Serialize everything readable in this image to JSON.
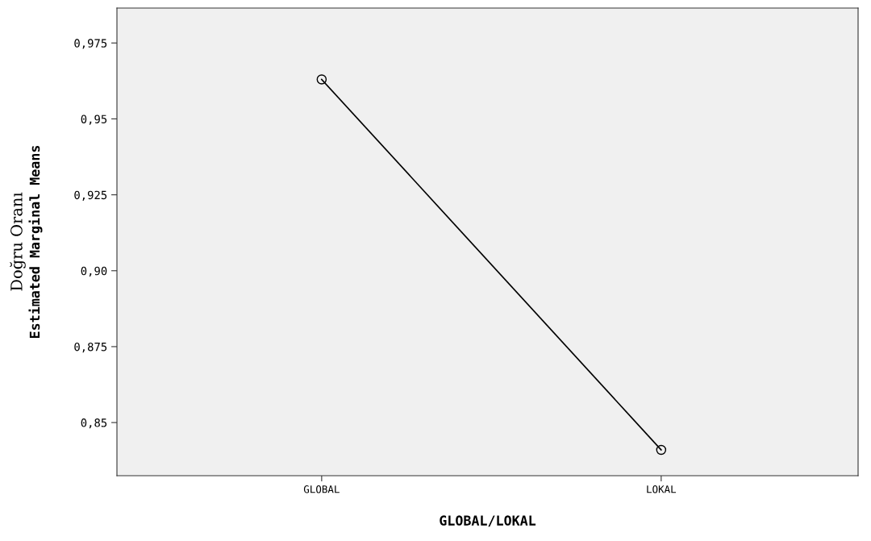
{
  "chart_data": {
    "type": "line",
    "categories": [
      "GLOBAL",
      "LOKAL"
    ],
    "series": [
      {
        "color": "#000000",
        "values": [
          0.963,
          0.841
        ]
      }
    ],
    "marker": "circle",
    "line_style": "solid",
    "grid": false,
    "legend": false,
    "xlabel": "GLOBAL/LOKAL",
    "ylabel": "Doğru Oranı\nEstimated Marginal Means",
    "ylim": [
      0.8325,
      0.9865
    ],
    "yticks": [
      {
        "value": 0.85,
        "label": "0,85"
      },
      {
        "value": 0.875,
        "label": "0,875"
      },
      {
        "value": 0.9,
        "label": "0,90"
      },
      {
        "value": 0.925,
        "label": "0,925"
      },
      {
        "value": 0.95,
        "label": "0,95"
      },
      {
        "value": 0.975,
        "label": "0,975"
      }
    ]
  }
}
